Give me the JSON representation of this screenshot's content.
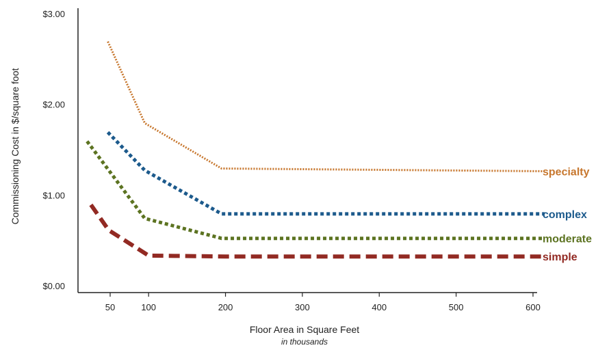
{
  "chart_data": {
    "type": "line",
    "xlabel": "Floor Area in Square Feet",
    "xlabel_sub": "in thousands",
    "ylabel": "Commissioning Cost in $/square foot",
    "xlim": [
      0,
      615
    ],
    "ylim": [
      0,
      3
    ],
    "x_ticks": [
      50,
      100,
      200,
      300,
      400,
      500,
      600
    ],
    "x_tick_labels": [
      "50",
      "100",
      "200",
      "300",
      "400",
      "500",
      "600"
    ],
    "y_ticks": [
      0,
      1,
      2,
      3
    ],
    "y_tick_labels": [
      "$0.00",
      "$1.00",
      "$2.00",
      "$3.00"
    ],
    "grid": false,
    "legend": "inline-right",
    "series": [
      {
        "name": "specialty",
        "color": "#c7772e",
        "style": "fine-dotted",
        "points": [
          [
            47,
            2.7
          ],
          [
            95,
            1.8
          ],
          [
            195,
            1.3
          ],
          [
            615,
            1.27
          ]
        ]
      },
      {
        "name": "complex",
        "color": "#1c5a8c",
        "style": "dotted",
        "points": [
          [
            47,
            1.7
          ],
          [
            95,
            1.28
          ],
          [
            195,
            0.8
          ],
          [
            615,
            0.8
          ]
        ]
      },
      {
        "name": "moderate",
        "color": "#5c7321",
        "style": "dotted",
        "points": [
          [
            20,
            1.6
          ],
          [
            95,
            0.75
          ],
          [
            195,
            0.53
          ],
          [
            615,
            0.53
          ]
        ]
      },
      {
        "name": "simple",
        "color": "#922a23",
        "style": "dashed",
        "points": [
          [
            25,
            0.9
          ],
          [
            48,
            0.62
          ],
          [
            100,
            0.34
          ],
          [
            200,
            0.33
          ],
          [
            615,
            0.33
          ]
        ]
      }
    ]
  }
}
